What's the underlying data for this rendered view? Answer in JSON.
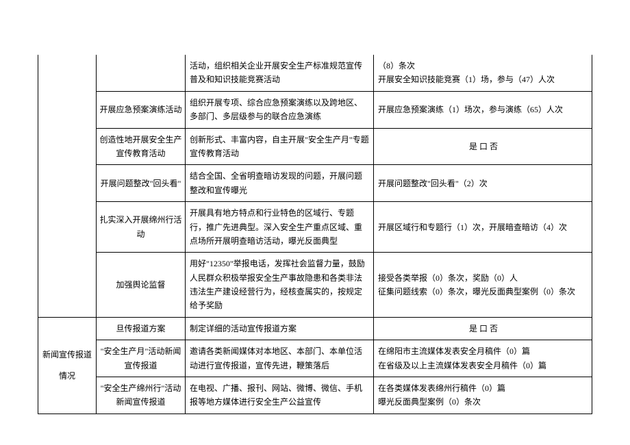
{
  "rows": {
    "r1": {
      "col3": "活动，组织相关企业开展安全生产标准规范宣传普及和知识技能竞赛活动",
      "col4": "（8）条次\n开展安全知识技能竞赛（1）场，参与（47）人次"
    },
    "r2": {
      "col2": "开展应急预案演练活动",
      "col3": "组织开展专项、综合应急预案演练以及跨地区、多部门、多层级参与的联合应急演练",
      "col4": "开展应急预案演练（1）场次，参与演练（65）人次"
    },
    "r3": {
      "col2": "创造性地开展安全生产宣传教育活动",
      "col3": "创新形式、丰富内容，自主开展\"安全生产月\"专题宣传教育活动",
      "col4": "是 口 否"
    },
    "r4": {
      "col2": "开展问题整改\"回头看\"",
      "col3": "结合全国、全省明查暗访发现的问题，开展问题整改和宣传曝光",
      "col4": "开展问题整改\"回头看\"（2）次"
    },
    "r5": {
      "col2": "扎实深入开展绵州行活动",
      "col3": "开展具有地方特点和行业特色的区域行、专题行，推广先进典型。深入安全生产重点区域、重点场所开展明查暗访活动，曝光反面典型",
      "col4": "开展区域行和专题行（1）次，开展暗查暗访（4）次"
    },
    "r6": {
      "col2": "加强舆论监督",
      "col3": "用好\"12350\"举报电话，发挥社会监督力量，鼓励人民群众积极举报安全生产事故隐患和各类非法违法生产建设经营行为，经核查属实的，按规定给予奖励",
      "col4": "接受各类举报（0）条次，奖励（0）人\n征集问题线索（0）条次，曝光反面典型案例（0）条次"
    },
    "r7": {
      "col1": "新闻宣传报道情况",
      "col2": "旦传报道方案",
      "col3": "制定详细的活动宣传报道方案",
      "col4": "是 口 否"
    },
    "r8": {
      "col2": "\"安全生产月\"活动新闻宣传报道",
      "col3": "邀请各类新闻媒体对本地区、本部门、本单位活动进行宣传报道，宣传先进，鞭策落后",
      "col4": "在绵阳市主流媒体发表安全月稿件（0）篇\n在省级及以上主流媒体发表安全月稿件（0）篇"
    },
    "r9": {
      "col2": "\"安全生产绵州行\"活动新闻宣传报道",
      "col3": "在电视、广播、报刊、网站、微博、微信、手机报等地方媒体进行安全生产公益宣传",
      "col4": "在各类媒体发表绵州行稿件（0）篇\n曝光反面典型案例（0）条次"
    }
  }
}
